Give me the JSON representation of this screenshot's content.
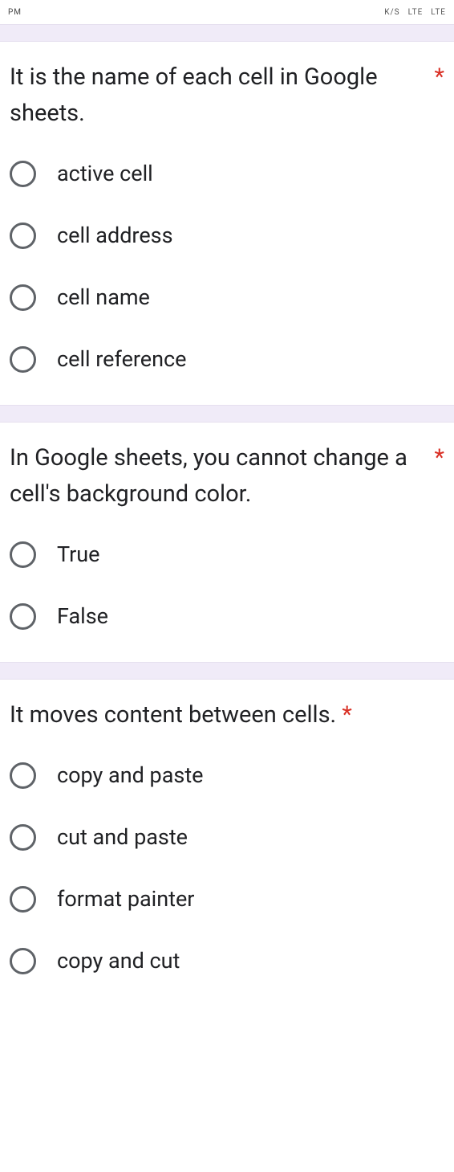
{
  "statusbar": {
    "left": "PM",
    "indicators": [
      "K/S",
      "LTE",
      "LTE"
    ]
  },
  "required_mark": "*",
  "questions": [
    {
      "text": "It is the name of each cell in Google sheets.",
      "required": true,
      "options": [
        "active cell",
        "cell address",
        "cell name",
        "cell reference"
      ]
    },
    {
      "text": "In Google sheets, you cannot change a cell's background color.",
      "required": true,
      "options": [
        "True",
        "False"
      ]
    },
    {
      "text": "It moves content between cells.",
      "required": true,
      "options": [
        "copy and paste",
        "cut and paste",
        "format painter",
        "copy and cut"
      ]
    }
  ],
  "colors": {
    "gap_bg": "#f0ebf8",
    "text": "#202124",
    "required": "#d93025",
    "radio_border": "#5f6368"
  }
}
